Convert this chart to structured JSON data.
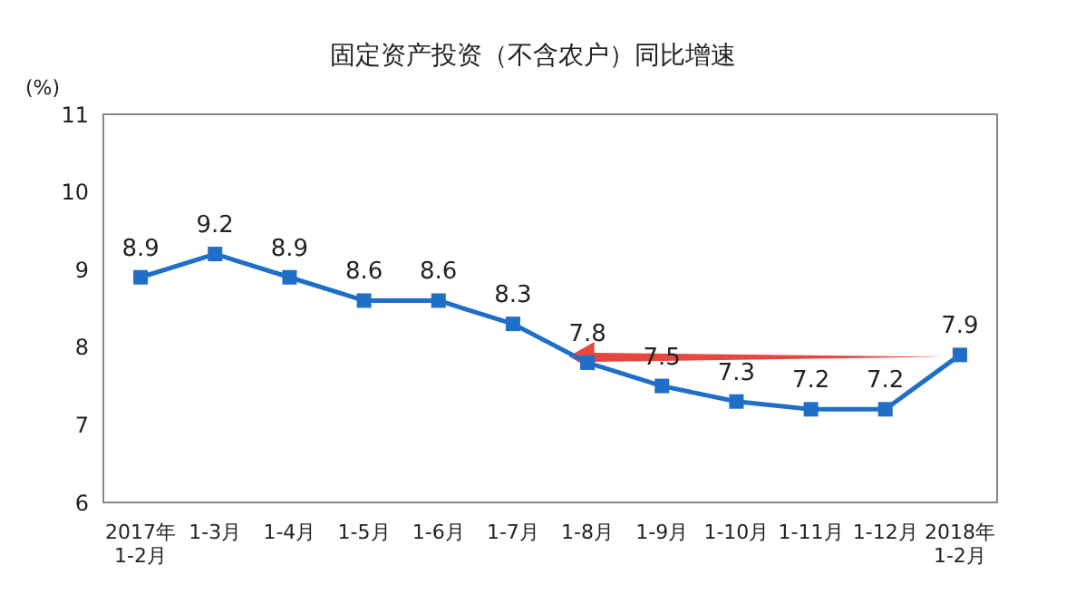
{
  "chart_data": {
    "type": "line",
    "title": "固定资产投资（不含农户）同比增速",
    "ylabel": "(%)",
    "categories": [
      "2017年\n1-2月",
      "1-3月",
      "1-4月",
      "1-5月",
      "1-6月",
      "1-7月",
      "1-8月",
      "1-9月",
      "1-10月",
      "1-11月",
      "1-12月",
      "2018年\n1-2月"
    ],
    "values": [
      8.9,
      9.2,
      8.9,
      8.6,
      8.6,
      8.3,
      7.8,
      7.5,
      7.3,
      7.2,
      7.2,
      7.9
    ],
    "color": "#1f6fc8",
    "ylim": [
      6,
      11
    ],
    "yticks": [
      6,
      7,
      8,
      9,
      10,
      11
    ],
    "marker": "square",
    "data_labels": true
  }
}
